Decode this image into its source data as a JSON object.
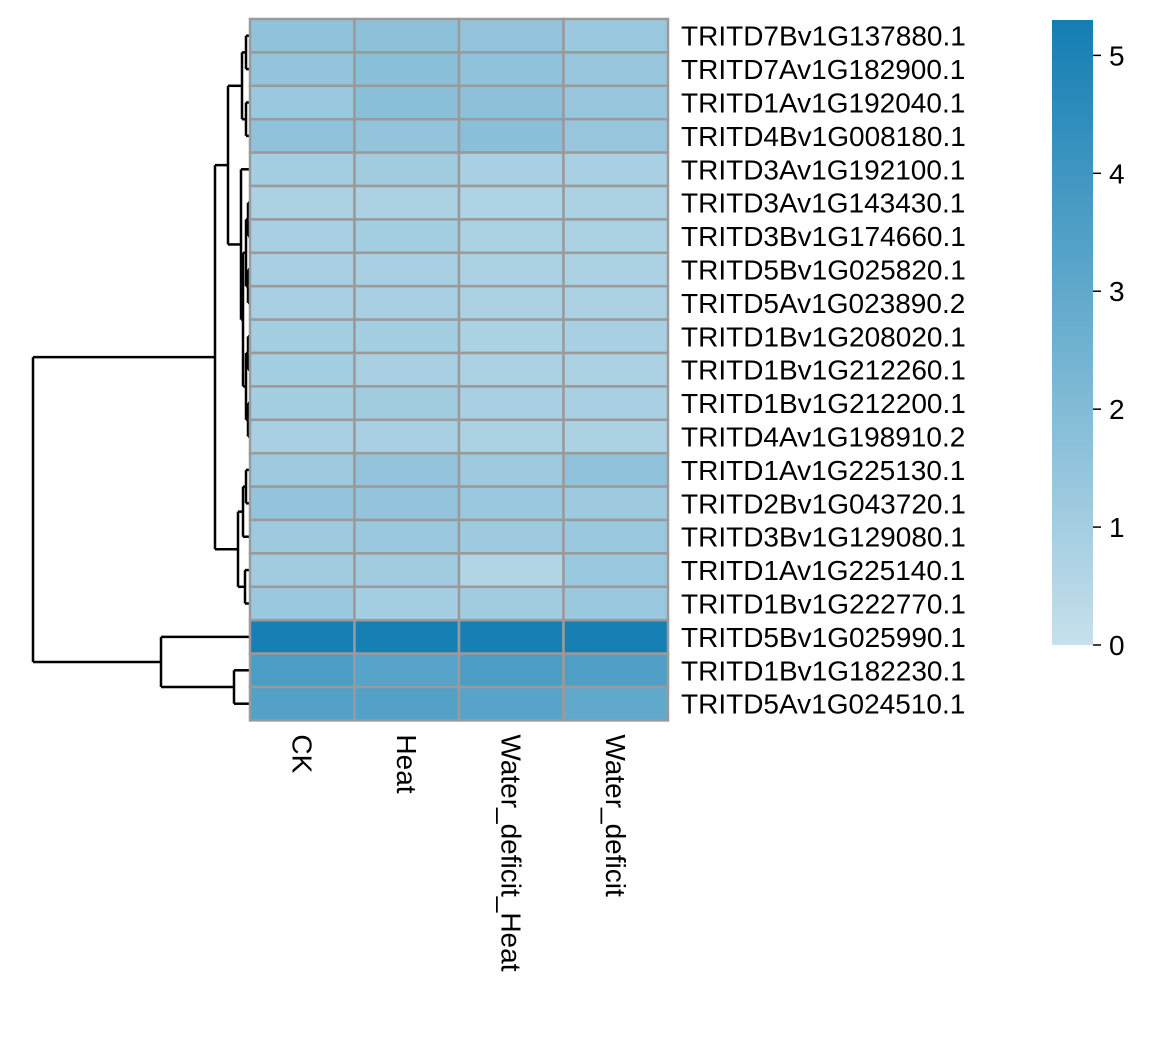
{
  "chart_data": {
    "type": "heatmap",
    "title": "",
    "xlabel": "",
    "ylabel": "",
    "columns": [
      "CK",
      "Heat",
      "Water_deficit_Heat",
      "Water_deficit"
    ],
    "rows": [
      "TRITD7Bv1G137880.1",
      "TRITD7Av1G182900.1",
      "TRITD1Av1G192040.1",
      "TRITD4Bv1G008180.1",
      "TRITD3Av1G192100.1",
      "TRITD3Av1G143430.1",
      "TRITD3Bv1G174660.1",
      "TRITD5Bv1G025820.1",
      "TRITD5Av1G023890.2",
      "TRITD1Bv1G208020.1",
      "TRITD1Bv1G212260.1",
      "TRITD1Bv1G212200.1",
      "TRITD4Av1G198910.2",
      "TRITD1Av1G225130.1",
      "TRITD2Bv1G043720.1",
      "TRITD3Bv1G129080.1",
      "TRITD1Av1G225140.1",
      "TRITD1Bv1G222770.1",
      "TRITD5Bv1G025990.1",
      "TRITD1Bv1G182230.1",
      "TRITD5Av1G024510.1"
    ],
    "values": [
      [
        1.6,
        1.7,
        1.5,
        1.3
      ],
      [
        1.5,
        1.8,
        1.6,
        1.4
      ],
      [
        1.3,
        1.8,
        1.7,
        1.4
      ],
      [
        1.6,
        1.5,
        1.8,
        1.4
      ],
      [
        1.0,
        1.1,
        0.9,
        0.9
      ],
      [
        0.8,
        0.8,
        0.7,
        0.8
      ],
      [
        0.9,
        1.0,
        0.8,
        0.8
      ],
      [
        0.9,
        0.9,
        0.8,
        0.8
      ],
      [
        0.9,
        0.9,
        0.8,
        0.8
      ],
      [
        1.0,
        1.0,
        0.8,
        0.9
      ],
      [
        1.0,
        0.9,
        0.8,
        0.8
      ],
      [
        1.0,
        1.1,
        0.9,
        0.9
      ],
      [
        0.9,
        0.9,
        0.8,
        0.8
      ],
      [
        1.2,
        1.5,
        1.2,
        1.6
      ],
      [
        1.5,
        1.5,
        1.3,
        1.2
      ],
      [
        1.2,
        1.3,
        1.2,
        1.3
      ],
      [
        1.1,
        1.1,
        0.6,
        1.3
      ],
      [
        1.3,
        1.0,
        1.1,
        1.3
      ],
      [
        5.2,
        5.2,
        5.2,
        5.2
      ],
      [
        3.6,
        3.3,
        3.6,
        3.5
      ],
      [
        3.4,
        3.4,
        3.3,
        3.0
      ]
    ],
    "scale": {
      "min": 0,
      "max": 5.3,
      "ticks": [
        0,
        1,
        2,
        3,
        4,
        5
      ],
      "low_color": "#c6e0ec",
      "high_color": "#137eb3"
    },
    "row_dendrogram": true,
    "legend_position": "right"
  }
}
